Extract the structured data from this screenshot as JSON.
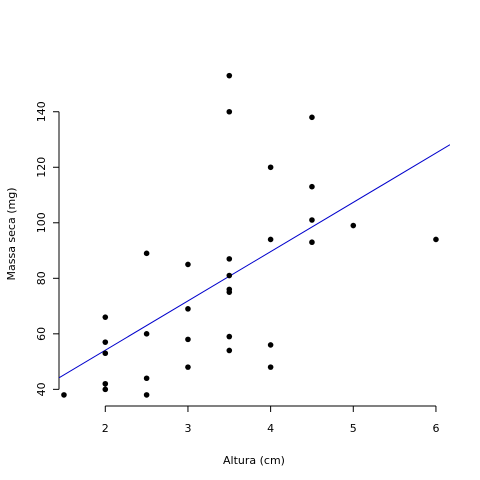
{
  "chart_data": {
    "type": "scatter",
    "title": "",
    "xlabel": "Altura (cm)",
    "ylabel": "Massa seca (mg)",
    "xlim": [
      1.44,
      6.17
    ],
    "ylim": [
      34,
      159
    ],
    "xticks": [
      2,
      3,
      4,
      5,
      6
    ],
    "yticks": [
      40,
      60,
      80,
      100,
      120,
      140
    ],
    "xtick_labels": [
      "2",
      "3",
      "4",
      "5",
      "6"
    ],
    "ytick_labels": [
      "40",
      "60",
      "80",
      "100",
      "120",
      "140"
    ],
    "grid": false,
    "point_color": "#000000",
    "line_color": "#0000cc",
    "points": [
      [
        1.5,
        38
      ],
      [
        2.0,
        40
      ],
      [
        2.0,
        42
      ],
      [
        2.0,
        53
      ],
      [
        2.0,
        57
      ],
      [
        2.0,
        66
      ],
      [
        2.5,
        38
      ],
      [
        2.5,
        44
      ],
      [
        2.5,
        60
      ],
      [
        2.5,
        89
      ],
      [
        3.0,
        48
      ],
      [
        3.0,
        58
      ],
      [
        3.0,
        69
      ],
      [
        3.0,
        85
      ],
      [
        3.5,
        54
      ],
      [
        3.5,
        59
      ],
      [
        3.5,
        75
      ],
      [
        3.5,
        76
      ],
      [
        3.5,
        81
      ],
      [
        3.5,
        87
      ],
      [
        3.5,
        140
      ],
      [
        3.5,
        153
      ],
      [
        4.0,
        48
      ],
      [
        4.0,
        56
      ],
      [
        4.0,
        94
      ],
      [
        4.0,
        120
      ],
      [
        4.5,
        93
      ],
      [
        4.5,
        101
      ],
      [
        4.5,
        113
      ],
      [
        4.5,
        138
      ],
      [
        5.0,
        99
      ],
      [
        6.0,
        94
      ]
    ],
    "regression": {
      "intercept": 18.6,
      "slope": 17.75
    }
  }
}
